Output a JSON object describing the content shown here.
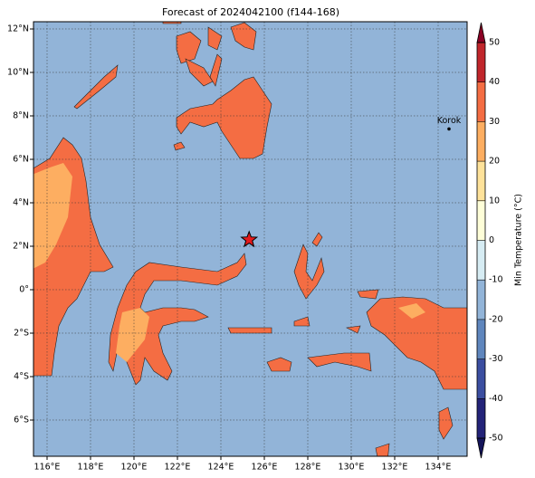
{
  "title": "Forecast of 2024042100 (f144-168)",
  "map": {
    "xlim": [
      115.375,
      135.333
    ],
    "ylim": [
      -7.667,
      12.333
    ],
    "xticks": [
      {
        "value": 116,
        "label": "116°E"
      },
      {
        "value": 118,
        "label": "118°E"
      },
      {
        "value": 120,
        "label": "120°E"
      },
      {
        "value": 122,
        "label": "122°E"
      },
      {
        "value": 124,
        "label": "124°E"
      },
      {
        "value": 126,
        "label": "126°E"
      },
      {
        "value": 128,
        "label": "128°E"
      },
      {
        "value": 130,
        "label": "130°E"
      },
      {
        "value": 132,
        "label": "132°E"
      },
      {
        "value": 134,
        "label": "134°E"
      }
    ],
    "yticks": [
      {
        "value": 12,
        "label": "12°N"
      },
      {
        "value": 10,
        "label": "10°N"
      },
      {
        "value": 8,
        "label": "8°N"
      },
      {
        "value": 6,
        "label": "6°N"
      },
      {
        "value": 4,
        "label": "4°N"
      },
      {
        "value": 2,
        "label": "2°N"
      },
      {
        "value": 0,
        "label": "0°"
      },
      {
        "value": -2,
        "label": "2°S"
      },
      {
        "value": -4,
        "label": "4°S"
      },
      {
        "value": -6,
        "label": "6°S"
      }
    ],
    "grid": true,
    "ocean_color": "#92b4d8",
    "center": {
      "lon": 125.3,
      "lat": 2.3,
      "color": "#e41a1c"
    },
    "stations": [
      {
        "name": "Korok",
        "lon": 134.5,
        "lat": 7.4
      }
    ]
  },
  "colorbar": {
    "label": "Min Temperature (°C)",
    "lim": [
      -50,
      50
    ],
    "ticks": [
      -50,
      -40,
      -30,
      -20,
      -10,
      0,
      10,
      20,
      30,
      40,
      50
    ],
    "colors": [
      "#232378",
      "#3b4ea0",
      "#5f86bd",
      "#92b4d8",
      "#d6ecf3",
      "#fefed8",
      "#fee29a",
      "#fdae61",
      "#f46d43",
      "#c0262b"
    ],
    "under_color": "#14145a",
    "over_color": "#8a0024"
  }
}
